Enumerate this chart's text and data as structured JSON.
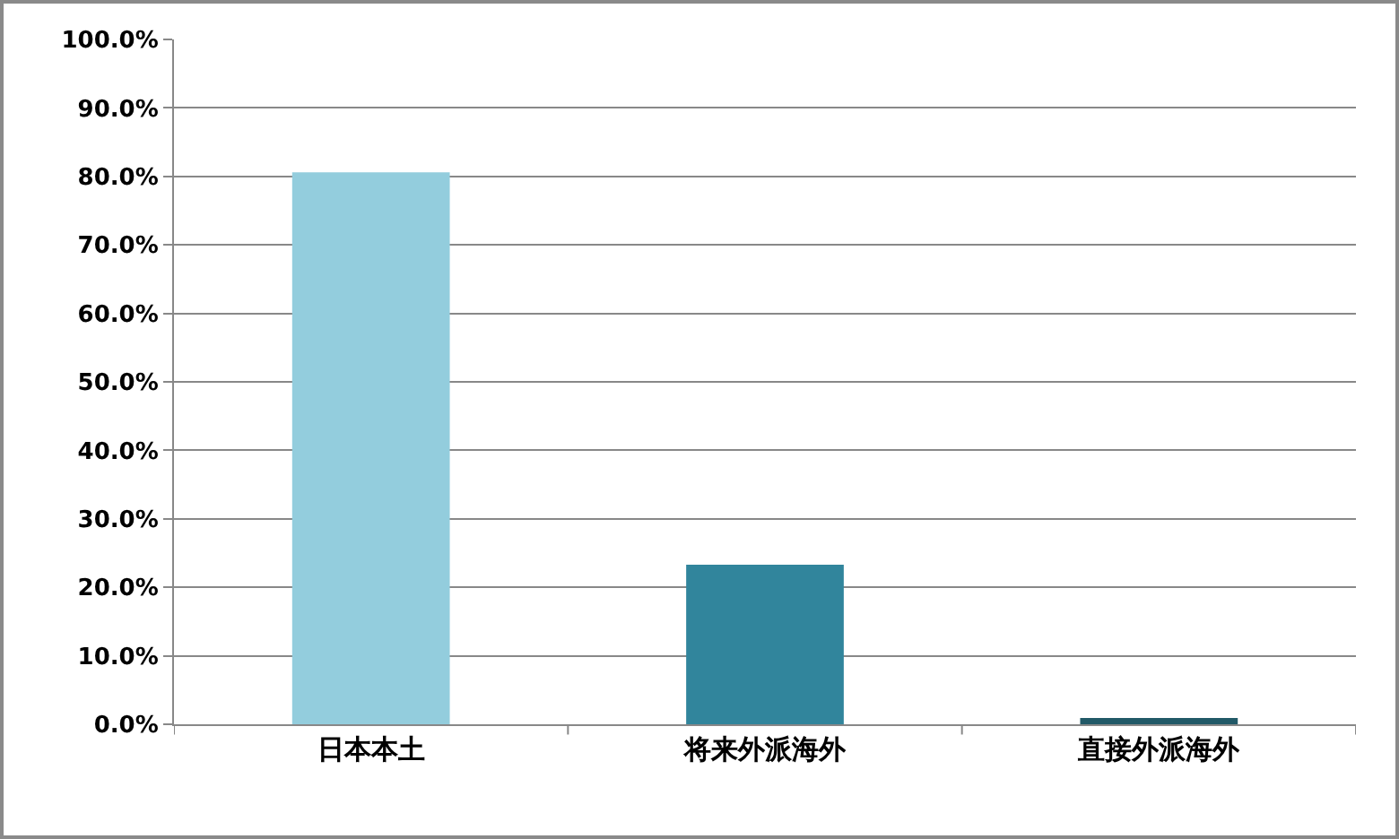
{
  "chart_data": {
    "type": "bar",
    "categories": [
      "日本本土",
      "将来外派海外",
      "直接外派海外"
    ],
    "values": [
      80.6,
      23.3,
      0.9
    ],
    "colors": [
      "#93cddd",
      "#31859c",
      "#215967"
    ],
    "ylim": [
      0,
      100
    ],
    "yticks": [
      {
        "value": 0,
        "label": "0.0%"
      },
      {
        "value": 10,
        "label": "10.0%"
      },
      {
        "value": 20,
        "label": "20.0%"
      },
      {
        "value": 30,
        "label": "30.0%"
      },
      {
        "value": 40,
        "label": "40.0%"
      },
      {
        "value": 50,
        "label": "50.0%"
      },
      {
        "value": 60,
        "label": "60.0%"
      },
      {
        "value": 70,
        "label": "70.0%"
      },
      {
        "value": 80,
        "label": "80.0%"
      },
      {
        "value": 90,
        "label": "90.0%"
      },
      {
        "value": 100,
        "label": "100.0%"
      }
    ],
    "grid": "y"
  }
}
